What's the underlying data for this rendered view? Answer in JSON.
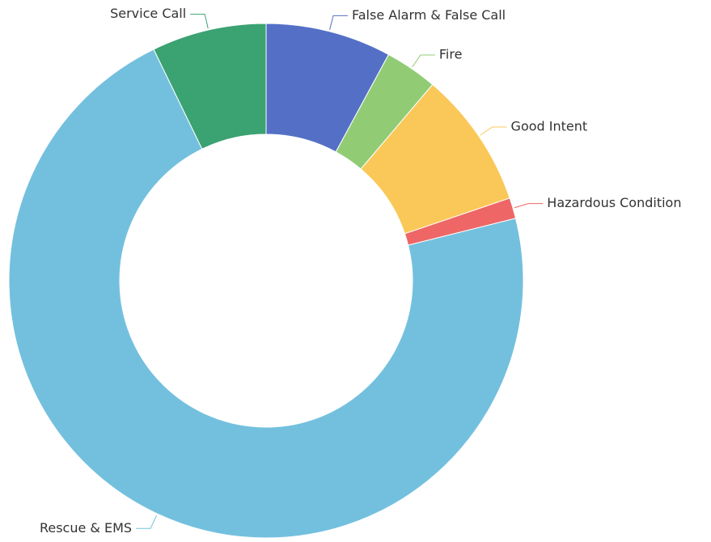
{
  "chart_data": {
    "type": "pie",
    "variant": "donut",
    "title": "",
    "legend": "none",
    "slices": [
      {
        "label": "False Alarm & False Call",
        "value": 7.9,
        "color": "#5470c6",
        "label_side": "right"
      },
      {
        "label": "Fire",
        "value": 3.3,
        "color": "#91cc75",
        "label_side": "right"
      },
      {
        "label": "Good Intent",
        "value": 8.6,
        "color": "#fac858",
        "label_side": "right"
      },
      {
        "label": "Hazardous Condition",
        "value": 1.3,
        "color": "#ee6666",
        "label_side": "right"
      },
      {
        "label": "Rescue & EMS",
        "value": 71.7,
        "color": "#73c0de",
        "label_side": "left"
      },
      {
        "label": "Service Call",
        "value": 7.2,
        "color": "#3ba272",
        "label_side": "left"
      }
    ]
  }
}
